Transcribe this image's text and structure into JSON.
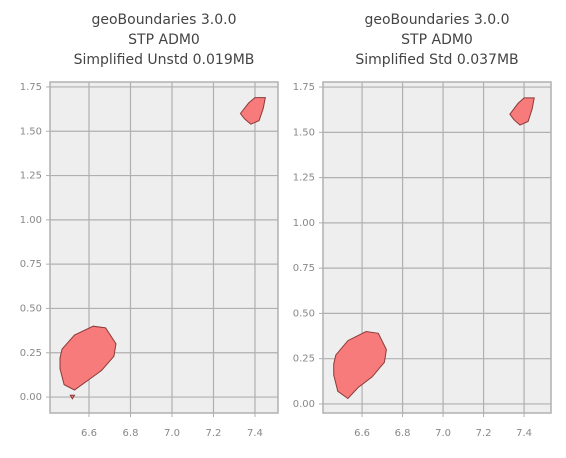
{
  "chart_data": [
    {
      "type": "map",
      "title": [
        "geoBoundaries 3.0.0",
        "STP ADM0",
        "Simplified Unstd 0.019MB"
      ],
      "color": "#f77b7b",
      "edgecolor": "#8a3a3a",
      "grid": true,
      "xlim": [
        6.412,
        7.511
      ],
      "ylim": [
        -0.09,
        1.778
      ],
      "xticks": [
        6.6,
        6.8,
        {
          "value": 7,
          "label": "7.0"
        },
        7.2,
        7.4
      ],
      "yticks": [
        {
          "value": 0,
          "label": "0.00"
        },
        {
          "value": 0.25,
          "label": "0.25"
        },
        {
          "value": 0.5,
          "label": "0.50"
        },
        {
          "value": 0.75,
          "label": "0.75"
        },
        {
          "value": 1,
          "label": "1.00"
        },
        {
          "value": 1.25,
          "label": "1.25"
        },
        {
          "value": 1.5,
          "label": "1.50"
        },
        {
          "value": 1.75,
          "label": "1.75"
        }
      ],
      "shapes": [
        {
          "x": [
            6.47,
            6.53,
            6.62,
            6.68,
            6.73,
            6.72,
            6.66,
            6.59,
            6.53,
            6.48,
            6.46,
            6.46
          ],
          "y": [
            0.27,
            0.35,
            0.4,
            0.39,
            0.3,
            0.23,
            0.15,
            0.09,
            0.04,
            0.07,
            0.16,
            0.22
          ]
        },
        {
          "x": [
            7.33,
            7.37,
            7.4,
            7.45,
            7.44,
            7.42,
            7.38,
            7.35
          ],
          "y": [
            1.6,
            1.66,
            1.69,
            1.69,
            1.63,
            1.56,
            1.54,
            1.57
          ]
        },
        {
          "x": [
            6.51,
            6.53,
            6.52
          ],
          "y": [
            0.01,
            0.01,
            -0.01
          ]
        }
      ]
    },
    {
      "type": "map",
      "title": [
        "geoBoundaries 3.0.0",
        "STP ADM0",
        "Simplified Std 0.037MB"
      ],
      "color": "#f77b7b",
      "edgecolor": "#8a3a3a",
      "grid": true,
      "xlim": [
        6.407,
        7.533
      ],
      "ylim": [
        -0.05,
        1.778
      ],
      "xticks": [
        6.6,
        6.8,
        {
          "value": 7,
          "label": "7.0"
        },
        7.2,
        7.4
      ],
      "yticks": [
        {
          "value": 0,
          "label": "0.00"
        },
        {
          "value": 0.25,
          "label": "0.25"
        },
        {
          "value": 0.5,
          "label": "0.50"
        },
        {
          "value": 0.75,
          "label": "0.75"
        },
        {
          "value": 1,
          "label": "1.00"
        },
        {
          "value": 1.25,
          "label": "1.25"
        },
        {
          "value": 1.5,
          "label": "1.50"
        },
        {
          "value": 1.75,
          "label": "1.75"
        }
      ],
      "shapes": [
        {
          "x": [
            6.47,
            6.53,
            6.62,
            6.68,
            6.72,
            6.71,
            6.65,
            6.58,
            6.53,
            6.48,
            6.46,
            6.46
          ],
          "y": [
            0.27,
            0.35,
            0.4,
            0.39,
            0.3,
            0.23,
            0.15,
            0.09,
            0.03,
            0.07,
            0.16,
            0.22
          ]
        },
        {
          "x": [
            7.33,
            7.37,
            7.4,
            7.45,
            7.44,
            7.42,
            7.38,
            7.35
          ],
          "y": [
            1.6,
            1.66,
            1.69,
            1.69,
            1.63,
            1.56,
            1.54,
            1.57
          ]
        }
      ]
    }
  ]
}
